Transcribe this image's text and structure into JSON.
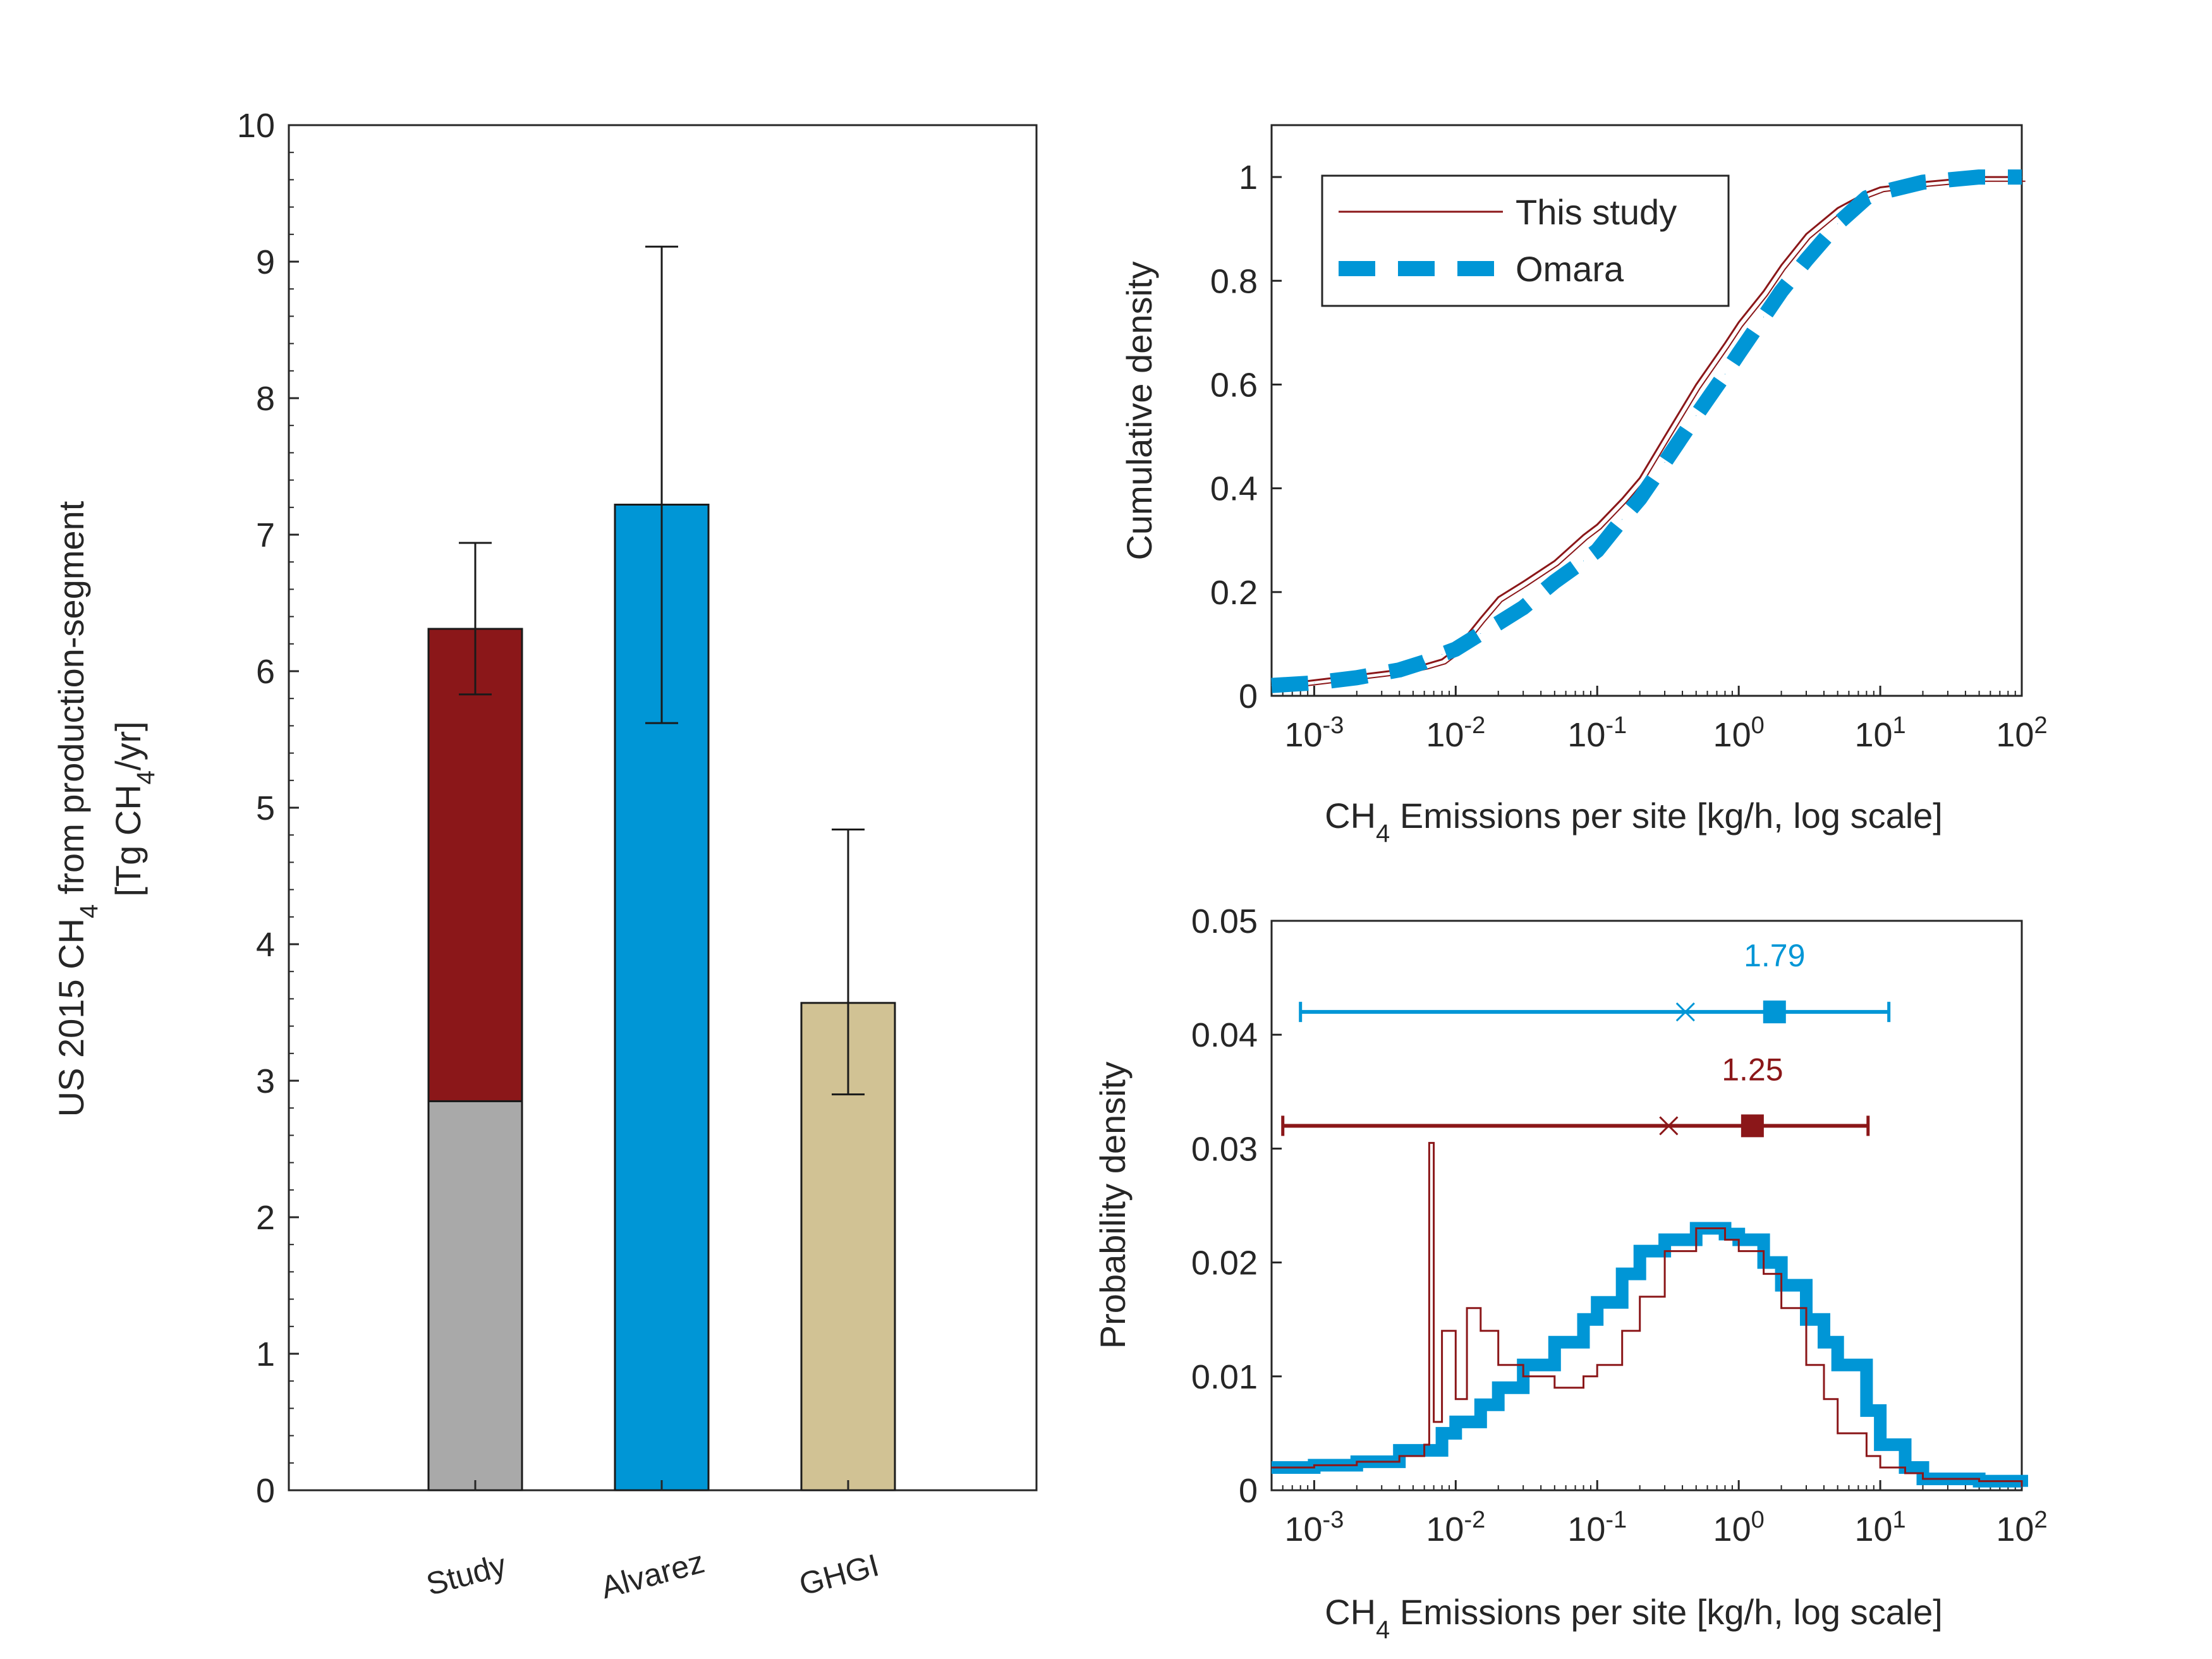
{
  "chart_data": [
    {
      "type": "bar",
      "stacked": true,
      "ylabel_line1": "US 2015 CH",
      "ylabel_sub1": "4",
      "ylabel_line1b": " from production-segment",
      "ylabel_line2a": "[Tg CH",
      "ylabel_sub2": "4",
      "ylabel_line2b": "/yr]",
      "ylim": [
        0,
        10
      ],
      "yticks": [
        "0",
        "1",
        "2",
        "3",
        "4",
        "5",
        "6",
        "7",
        "8",
        "9",
        "10"
      ],
      "categories": [
        "Study",
        "Alvarez",
        "GHGI"
      ],
      "series": [
        {
          "values": [
            2.85,
            7.22,
            3.57
          ],
          "colors": [
            "#a9a9a9",
            "#0096d6",
            "#d1c294"
          ]
        },
        {
          "values": [
            3.46,
            0,
            0
          ],
          "colors": [
            "#8b1719",
            "#8b1719",
            "#8b1719"
          ]
        }
      ],
      "totals": [
        6.31,
        7.22,
        3.57
      ],
      "error_bars": [
        [
          5.83,
          6.94
        ],
        [
          5.62,
          9.11
        ],
        [
          2.9,
          4.84
        ]
      ],
      "grid": false
    },
    {
      "type": "line",
      "xscale": "log",
      "xlim": [
        0.0005,
        100
      ],
      "ylim": [
        0,
        1.1
      ],
      "xlabel_pre": "CH",
      "xlabel_sub": "4",
      "xlabel_post": " Emissions per site [kg/h, log scale]",
      "ylabel": "Cumulative density",
      "xticks": [
        {
          "base": "10",
          "exp": "-3"
        },
        {
          "base": "10",
          "exp": "-2"
        },
        {
          "base": "10",
          "exp": "-1"
        },
        {
          "base": "10",
          "exp": "0"
        },
        {
          "base": "10",
          "exp": "1"
        },
        {
          "base": "10",
          "exp": "2"
        }
      ],
      "yticks": [
        "0",
        "0.2",
        "0.4",
        "0.6",
        "0.8",
        "1"
      ],
      "legend": {
        "position": "top-left"
      },
      "series": [
        {
          "name": "This study",
          "color": "#8b1719",
          "x": [
            0.0005,
            0.001,
            0.002,
            0.004,
            0.006,
            0.008,
            0.01,
            0.015,
            0.02,
            0.03,
            0.05,
            0.08,
            0.1,
            0.15,
            0.2,
            0.3,
            0.5,
            0.8,
            1,
            1.5,
            2,
            3,
            5,
            8,
            10,
            20,
            50,
            100
          ],
          "y": [
            0.02,
            0.03,
            0.04,
            0.05,
            0.06,
            0.07,
            0.09,
            0.15,
            0.19,
            0.22,
            0.26,
            0.31,
            0.33,
            0.38,
            0.42,
            0.5,
            0.6,
            0.68,
            0.72,
            0.78,
            0.83,
            0.89,
            0.94,
            0.97,
            0.98,
            0.99,
            1.0,
            1.0
          ]
        },
        {
          "name": "Omara",
          "color": "#0096d6",
          "dashed": true,
          "x": [
            0.0005,
            0.001,
            0.002,
            0.004,
            0.006,
            0.008,
            0.01,
            0.015,
            0.02,
            0.03,
            0.05,
            0.08,
            0.1,
            0.15,
            0.2,
            0.3,
            0.5,
            0.8,
            1,
            1.5,
            2,
            3,
            5,
            8,
            10,
            20,
            50,
            100
          ],
          "y": [
            0.02,
            0.025,
            0.035,
            0.05,
            0.065,
            0.08,
            0.09,
            0.12,
            0.14,
            0.17,
            0.22,
            0.26,
            0.28,
            0.34,
            0.38,
            0.45,
            0.54,
            0.62,
            0.66,
            0.73,
            0.78,
            0.84,
            0.91,
            0.96,
            0.97,
            0.99,
            1.0,
            1.0
          ]
        }
      ],
      "grid": false
    },
    {
      "type": "line",
      "xscale": "log",
      "xlim": [
        0.0005,
        100
      ],
      "ylim": [
        0,
        0.05
      ],
      "xlabel_pre": "CH",
      "xlabel_sub": "4",
      "xlabel_post": " Emissions per site [kg/h, log scale]",
      "ylabel": "Probability density",
      "xticks": [
        {
          "base": "10",
          "exp": "-3"
        },
        {
          "base": "10",
          "exp": "-2"
        },
        {
          "base": "10",
          "exp": "-1"
        },
        {
          "base": "10",
          "exp": "0"
        },
        {
          "base": "10",
          "exp": "1"
        },
        {
          "base": "10",
          "exp": "2"
        }
      ],
      "yticks": [
        "0",
        "0.01",
        "0.02",
        "0.03",
        "0.04",
        "0.05"
      ],
      "series": [
        {
          "color": "#8b1719",
          "x": [
            0.0005,
            0.001,
            0.002,
            0.004,
            0.006,
            0.0065,
            0.007,
            0.008,
            0.01,
            0.012,
            0.015,
            0.02,
            0.03,
            0.05,
            0.08,
            0.1,
            0.15,
            0.2,
            0.3,
            0.5,
            0.8,
            1,
            1.5,
            2,
            3,
            4,
            5,
            8,
            10,
            15,
            20,
            30,
            50,
            100
          ],
          "y": [
            0.002,
            0.0022,
            0.0025,
            0.003,
            0.004,
            0.0305,
            0.006,
            0.014,
            0.008,
            0.016,
            0.014,
            0.011,
            0.01,
            0.009,
            0.01,
            0.011,
            0.014,
            0.017,
            0.021,
            0.023,
            0.022,
            0.021,
            0.019,
            0.016,
            0.011,
            0.008,
            0.005,
            0.003,
            0.002,
            0.0015,
            0.001,
            0.001,
            0.0008,
            0.0003
          ]
        },
        {
          "color": "#0096d6",
          "x": [
            0.0005,
            0.001,
            0.002,
            0.004,
            0.008,
            0.01,
            0.015,
            0.02,
            0.03,
            0.05,
            0.08,
            0.1,
            0.15,
            0.2,
            0.3,
            0.5,
            0.8,
            1,
            1.5,
            2,
            3,
            4,
            5,
            8,
            10,
            15,
            20,
            30,
            50,
            100
          ],
          "y": [
            0.002,
            0.0022,
            0.0025,
            0.0035,
            0.005,
            0.006,
            0.0075,
            0.009,
            0.011,
            0.013,
            0.015,
            0.0165,
            0.019,
            0.021,
            0.022,
            0.023,
            0.0225,
            0.022,
            0.02,
            0.018,
            0.015,
            0.013,
            0.011,
            0.007,
            0.004,
            0.002,
            0.001,
            0.001,
            0.0008,
            0.0003
          ]
        }
      ],
      "intervals": [
        {
          "color": "#0096d6",
          "y": 0.042,
          "low": 0.0008,
          "high": 11.5,
          "x_marker": 0.42,
          "square": 1.79,
          "label": "1.79"
        },
        {
          "color": "#8b1719",
          "y": 0.032,
          "low": 0.0006,
          "high": 8.2,
          "x_marker": 0.32,
          "square": 1.25,
          "label": "1.25"
        }
      ],
      "grid": false
    }
  ]
}
